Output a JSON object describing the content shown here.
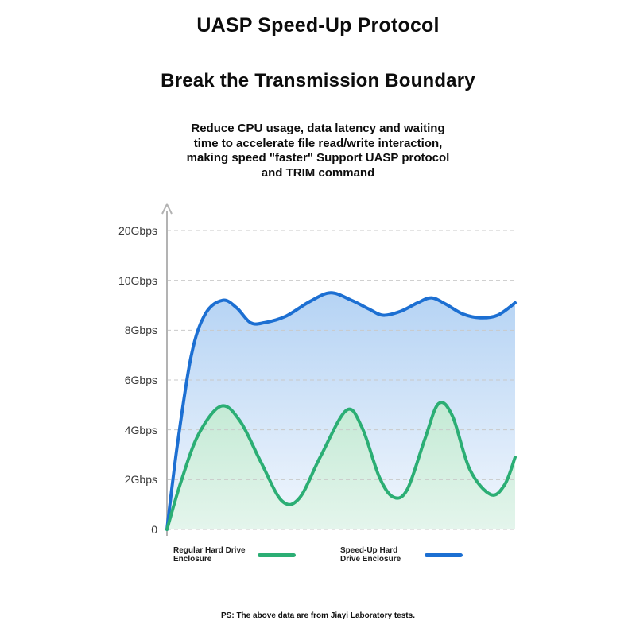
{
  "header": {
    "title": "UASP Speed-Up Protocol",
    "subtitle": "Break the Transmission Boundary",
    "description_lines": [
      "Reduce CPU usage, data latency and waiting",
      "time to accelerate file read/write interaction,",
      "making speed \"faster\" Support UASP protocol",
      "and TRIM command"
    ]
  },
  "chart_data": {
    "type": "area",
    "title": "",
    "xlabel": "",
    "ylabel": "Gbps",
    "y_unit": "Gbps",
    "grid": "dashed horizontal gridlines",
    "legend_position": "bottom",
    "axis_scale_note": "non-linear y axis: ticks 0,2,4,6,8,10,20 are equally spaced",
    "y_ticks": {
      "values": [
        0,
        2,
        4,
        6,
        8,
        10,
        20
      ],
      "labels": [
        "0",
        "2Gbps",
        "4Gbps",
        "6Gbps",
        "8Gbps",
        "10Gbps",
        "20Gbps"
      ]
    },
    "colors": {
      "gridline": "#c9c9c9",
      "axis": "#b3b3b3",
      "tick_text": "#3a3a3a"
    },
    "series": [
      {
        "key": "regular",
        "name": "Regular Hard Drive Enclosure",
        "color": "#2bae74",
        "fill_top": "#c4ead5",
        "fill_bottom": "#e4f5ec",
        "points": [
          [
            0,
            0
          ],
          [
            4,
            1.9
          ],
          [
            9,
            3.8
          ],
          [
            15.5,
            4.95
          ],
          [
            21,
            4.35
          ],
          [
            27,
            2.7
          ],
          [
            33,
            1.15
          ],
          [
            38,
            1.25
          ],
          [
            44,
            2.9
          ],
          [
            51.5,
            4.78
          ],
          [
            56,
            4.1
          ],
          [
            61,
            2.1
          ],
          [
            65,
            1.3
          ],
          [
            69,
            1.6
          ],
          [
            74,
            3.6
          ],
          [
            78,
            5.05
          ],
          [
            82,
            4.55
          ],
          [
            87,
            2.4
          ],
          [
            93,
            1.4
          ],
          [
            97,
            1.8
          ],
          [
            100,
            2.9
          ]
        ]
      },
      {
        "key": "speedup",
        "name": "Speed-Up Hard Drive Enclosure",
        "color": "#1c6fd2",
        "fill_top": "#b5d3f4",
        "fill_bottom": "#f2f7fd",
        "points": [
          [
            0,
            0
          ],
          [
            3,
            3.4
          ],
          [
            7,
            7.0
          ],
          [
            11,
            8.65
          ],
          [
            16,
            9.2
          ],
          [
            20,
            8.9
          ],
          [
            24,
            8.3
          ],
          [
            28,
            8.3
          ],
          [
            34,
            8.55
          ],
          [
            41,
            9.15
          ],
          [
            47,
            9.5
          ],
          [
            53,
            9.2
          ],
          [
            58,
            8.85
          ],
          [
            62,
            8.6
          ],
          [
            67,
            8.75
          ],
          [
            72,
            9.1
          ],
          [
            76,
            9.3
          ],
          [
            80,
            9.05
          ],
          [
            85,
            8.65
          ],
          [
            90,
            8.5
          ],
          [
            95,
            8.6
          ],
          [
            100,
            9.1
          ]
        ]
      }
    ]
  },
  "legend": {
    "items": [
      {
        "line1": "Regular Hard Drive",
        "line2": "Enclosure"
      },
      {
        "line1": "Speed-Up Hard",
        "line2": "Drive Enclosure"
      }
    ]
  },
  "footer": {
    "note": "PS: The above data are from Jiayi Laboratory tests."
  }
}
